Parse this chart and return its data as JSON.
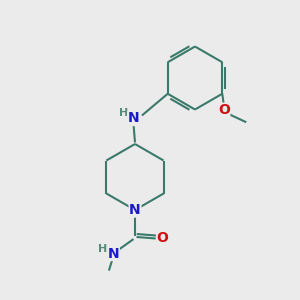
{
  "bg_color": "#ebebeb",
  "bond_color": "#3a7a6a",
  "bond_width": 1.5,
  "atom_colors": {
    "N": "#1a1acc",
    "O": "#cc1111",
    "C": "#3a7a6a",
    "H": "#5a8a7a"
  },
  "font_size": 9,
  "figsize": [
    3.0,
    3.0
  ],
  "dpi": 100
}
